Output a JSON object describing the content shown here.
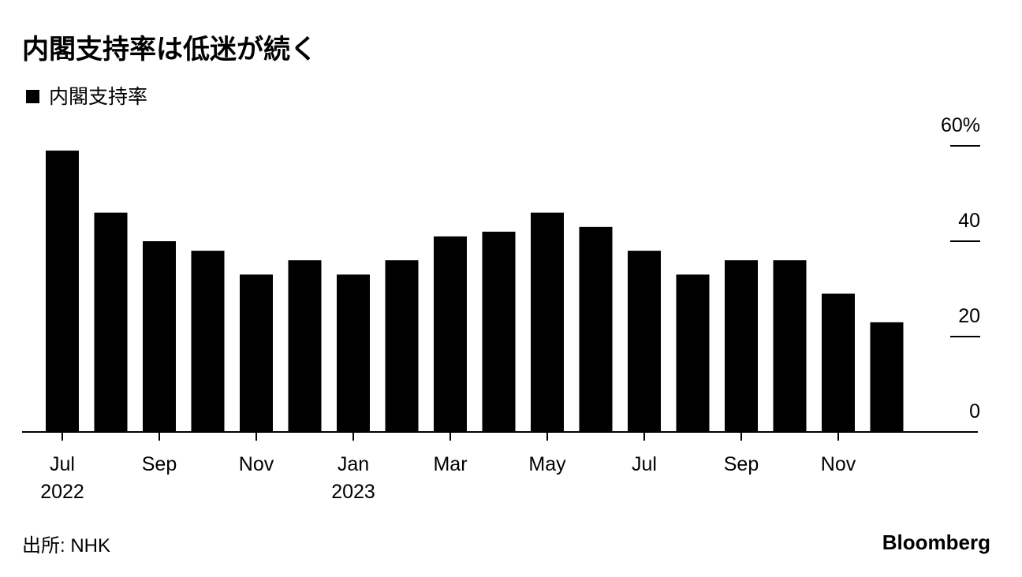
{
  "chart_data": {
    "type": "bar",
    "title": "内閣支持率は低迷が続く",
    "categories": [
      "Jul",
      null,
      "Sep",
      null,
      "Nov",
      null,
      "Jan",
      null,
      "Mar",
      null,
      "May",
      null,
      "Jul",
      null,
      "Sep",
      null,
      "Nov",
      null
    ],
    "year_labels": [
      "2022",
      null,
      null,
      null,
      null,
      null,
      "2023",
      null,
      null,
      null,
      null,
      null,
      null,
      null,
      null,
      null,
      null,
      null
    ],
    "series": [
      {
        "name": "内閣支持率",
        "color": "#000000",
        "values": [
          59,
          46,
          40,
          38,
          33,
          36,
          33,
          36,
          41,
          42,
          46,
          43,
          38,
          33,
          36,
          36,
          29,
          23
        ]
      }
    ],
    "ylim": [
      0,
      60
    ],
    "yticks": [
      0,
      20,
      40,
      {
        "value": 60,
        "label": "60%"
      }
    ],
    "source": "出所: NHK",
    "brand": "Bloomberg"
  }
}
